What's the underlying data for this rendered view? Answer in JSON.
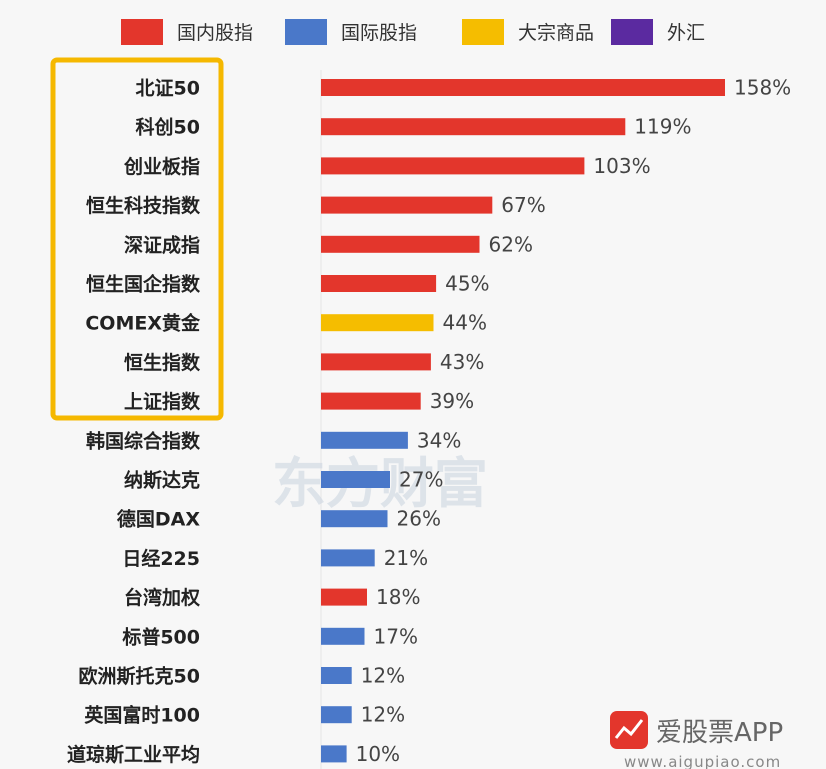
{
  "legend": [
    {
      "label": "国内股指",
      "color": "#e3362c"
    },
    {
      "label": "国际股指",
      "color": "#4a78c9"
    },
    {
      "label": "大宗商品",
      "color": "#f5bd00"
    },
    {
      "label": "外汇",
      "color": "#5b2aa0"
    }
  ],
  "watermark": "东方财富",
  "brand": {
    "name": "爱股票APP",
    "url": "www.aigupiao.com"
  },
  "highlighted_group": [
    "北证50",
    "科创50",
    "创业板指",
    "恒生科技指数",
    "深证成指",
    "恒生国企指数",
    "COMEX黄金",
    "恒生指数",
    "上证指数"
  ],
  "chart_data": {
    "type": "bar",
    "orientation": "horizontal",
    "title": "",
    "value_suffix": "%",
    "grid": false,
    "legend_position": "top",
    "xlim": [
      0,
      158
    ],
    "categories": [
      "北证50",
      "科创50",
      "创业板指",
      "恒生科技指数",
      "深证成指",
      "恒生国企指数",
      "COMEX黄金",
      "恒生指数",
      "上证指数",
      "韩国综合指数",
      "纳斯达克",
      "德国DAX",
      "日经225",
      "台湾加权",
      "标普500",
      "欧洲斯托克50",
      "英国富时100",
      "道琼斯工业平均"
    ],
    "values": [
      158,
      119,
      103,
      67,
      62,
      45,
      44,
      43,
      39,
      34,
      27,
      26,
      21,
      18,
      17,
      12,
      12,
      10
    ],
    "groups": [
      "国内股指",
      "国内股指",
      "国内股指",
      "国内股指",
      "国内股指",
      "国内股指",
      "大宗商品",
      "国内股指",
      "国内股指",
      "国际股指",
      "国际股指",
      "国际股指",
      "国际股指",
      "国内股指",
      "国际股指",
      "国际股指",
      "国际股指",
      "国际股指"
    ]
  }
}
